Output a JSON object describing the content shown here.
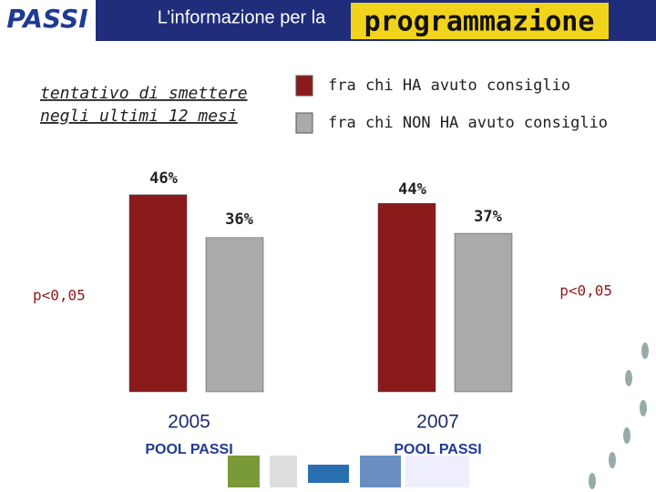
{
  "chart_data": {
    "type": "bar",
    "header": [
      "L’informazione per la",
      "programmazione"
    ],
    "logo": "PASSI",
    "ylabel": [
      "tentativo di smettere",
      "negli ultimi 12 mesi"
    ],
    "categories": [
      "2005",
      "2007"
    ],
    "sublabels": [
      "POOL PASSI",
      "POOL PASSI"
    ],
    "series": [
      {
        "name": "fra chi HA avuto consiglio",
        "color": "#8b1a1a",
        "values": [
          46,
          44
        ],
        "value_labels": [
          "46%",
          "44%"
        ]
      },
      {
        "name": "fra chi NON HA avuto consiglio",
        "color": "#aaaaaa",
        "values": [
          36,
          37
        ],
        "value_labels": [
          "36%",
          "37%"
        ]
      }
    ],
    "annotations": [
      "p<0,05",
      "p<0,05"
    ],
    "ylim": [
      0,
      50
    ],
    "grid": false
  }
}
